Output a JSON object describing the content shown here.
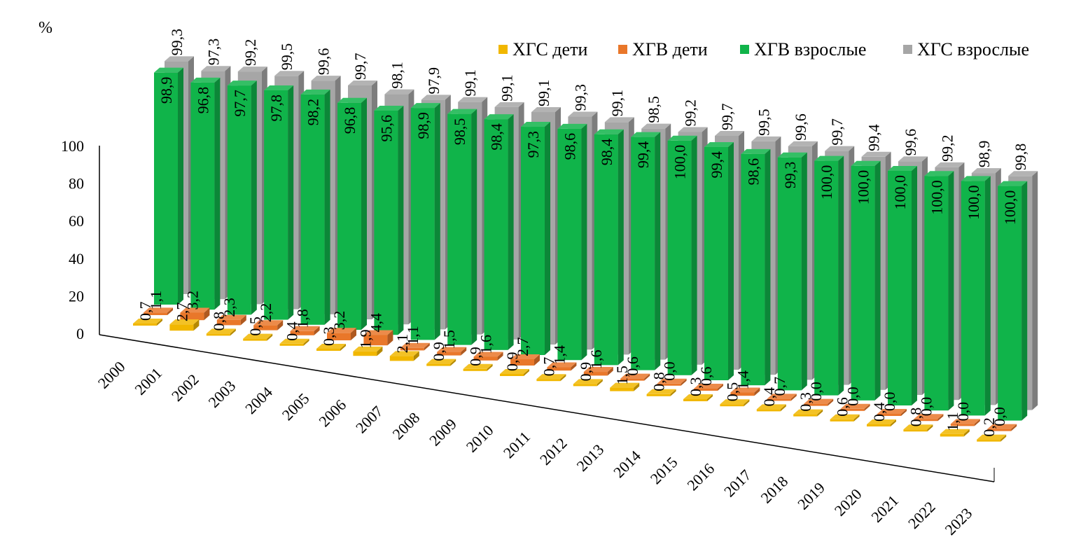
{
  "chart_data": {
    "type": "bar",
    "y_unit_label": "%",
    "categories": [
      "2000",
      "2001",
      "2002",
      "2003",
      "2004",
      "2005",
      "2006",
      "2007",
      "2008",
      "2009",
      "2010",
      "2011",
      "2012",
      "2013",
      "2014",
      "2015",
      "2016",
      "2017",
      "2018",
      "2019",
      "2020",
      "2021",
      "2022",
      "2023"
    ],
    "ylim": [
      0,
      100
    ],
    "y_ticks": [
      "0",
      "20",
      "40",
      "60",
      "80",
      "100"
    ],
    "legend_position": "top-right",
    "series": [
      {
        "name": "ХГС дети",
        "color": "#f1b700",
        "values": [
          0.7,
          2.7,
          0.8,
          0.5,
          0.4,
          0.3,
          1.9,
          2.1,
          0.9,
          0.9,
          0.9,
          0.7,
          0.9,
          1.5,
          0.8,
          0.3,
          0.5,
          0.4,
          0.3,
          0.6,
          0.4,
          0.8,
          1.1,
          0.2
        ],
        "labels": [
          "0,7",
          "2,7",
          "0,8",
          "0,5",
          "0,4",
          "0,3",
          "1,9",
          "2,1",
          "0,9",
          "0,9",
          "0,9",
          "0,7",
          "0,9",
          "1,5",
          "0,8",
          "0,3",
          "0,5",
          "0,4",
          "0,3",
          "0,6",
          "0,4",
          "0,8",
          "1,1",
          "0,2"
        ]
      },
      {
        "name": "ХГВ дети",
        "color": "#e9772a",
        "values": [
          1.1,
          3.2,
          2.3,
          2.2,
          1.8,
          3.2,
          4.4,
          1.1,
          1.5,
          1.6,
          2.7,
          1.4,
          1.6,
          0.6,
          0.0,
          0.6,
          1.4,
          0.7,
          0.0,
          0.0,
          0.0,
          0.0,
          0.0,
          0.0
        ],
        "labels": [
          "1,1",
          "3,2",
          "2,3",
          "2,2",
          "1,8",
          "3,2",
          "4,4",
          "1,1",
          "1,5",
          "1,6",
          "2,7",
          "1,4",
          "1,6",
          "0,6",
          "0,0",
          "0,6",
          "1,4",
          "0,7",
          "0,0",
          "0,0",
          "0,0",
          "0,0",
          "0,0",
          "0,0"
        ]
      },
      {
        "name": "ХГВ взрослые",
        "color": "#10b44a",
        "values": [
          98.9,
          96.8,
          97.7,
          97.8,
          98.2,
          96.8,
          95.6,
          98.9,
          98.5,
          98.4,
          97.3,
          98.6,
          98.4,
          99.4,
          100.0,
          99.4,
          98.6,
          99.3,
          100.0,
          100.0,
          100.0,
          100.0,
          100.0,
          100.0
        ],
        "labels": [
          "98,9",
          "96,8",
          "97,7",
          "97,8",
          "98,2",
          "96,8",
          "95,6",
          "98,9",
          "98,5",
          "98,4",
          "97,3",
          "98,6",
          "98,4",
          "99,4",
          "100,0",
          "99,4",
          "98,6",
          "99,3",
          "100,0",
          "100,0",
          "100,0",
          "100,0",
          "100,0",
          "100,0"
        ]
      },
      {
        "name": "ХГС взрослые",
        "color": "#a6a6a6",
        "values": [
          99.3,
          97.3,
          99.2,
          99.5,
          99.6,
          99.7,
          98.1,
          97.9,
          99.1,
          99.1,
          99.1,
          99.3,
          99.1,
          98.5,
          99.2,
          99.7,
          99.5,
          99.6,
          99.7,
          99.4,
          99.6,
          99.2,
          98.9,
          99.8
        ],
        "labels": [
          "99,3",
          "97,3",
          "99,2",
          "99,5",
          "99,6",
          "99,7",
          "98,1",
          "97,9",
          "99,1",
          "99,1",
          "99,1",
          "99,3",
          "99,1",
          "98,5",
          "99,2",
          "99,7",
          "99,5",
          "99,6",
          "99,7",
          "99,4",
          "99,6",
          "99,2",
          "98,9",
          "99,8"
        ]
      }
    ]
  }
}
